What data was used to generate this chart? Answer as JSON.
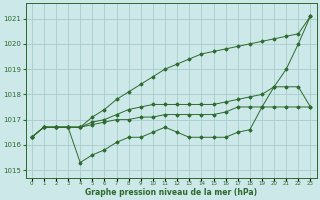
{
  "x": [
    0,
    1,
    2,
    3,
    4,
    5,
    6,
    7,
    8,
    9,
    10,
    11,
    12,
    13,
    14,
    15,
    16,
    17,
    18,
    19,
    20,
    21,
    22,
    23
  ],
  "line1": [
    1016.3,
    1016.7,
    1016.7,
    1016.7,
    1015.3,
    1015.6,
    1015.8,
    1016.1,
    1016.3,
    1016.3,
    1016.5,
    1016.7,
    1016.5,
    1016.3,
    1016.3,
    1016.3,
    1016.3,
    1016.5,
    1016.6,
    1017.5,
    1018.3,
    1019.0,
    1020.0,
    1021.1
  ],
  "line2": [
    1016.3,
    1016.7,
    1016.7,
    1016.7,
    1016.7,
    1016.9,
    1017.0,
    1017.2,
    1017.4,
    1017.5,
    1017.6,
    1017.6,
    1017.6,
    1017.6,
    1017.6,
    1017.6,
    1017.7,
    1017.8,
    1017.9,
    1018.0,
    1018.3,
    1018.3,
    1018.3,
    1017.5
  ],
  "line3": [
    1016.3,
    1016.7,
    1016.7,
    1016.7,
    1016.7,
    1017.1,
    1017.4,
    1017.8,
    1018.1,
    1018.4,
    1018.7,
    1019.0,
    1019.2,
    1019.4,
    1019.6,
    1019.7,
    1019.8,
    1019.9,
    1020.0,
    1020.1,
    1020.2,
    1020.3,
    1020.4,
    1021.1
  ],
  "line4": [
    1016.3,
    1016.7,
    1016.7,
    1016.7,
    1016.7,
    1016.8,
    1016.9,
    1017.0,
    1017.0,
    1017.1,
    1017.1,
    1017.2,
    1017.2,
    1017.2,
    1017.2,
    1017.2,
    1017.3,
    1017.5,
    1017.5,
    1017.5,
    1017.5,
    1017.5,
    1017.5,
    1017.5
  ],
  "bg_color": "#cce8e8",
  "grid_color": "#aacccc",
  "line_color": "#2d6a2d",
  "xlabel": "Graphe pression niveau de la mer (hPa)",
  "ylabel_ticks": [
    1015,
    1016,
    1017,
    1018,
    1019,
    1020,
    1021
  ],
  "xlim": [
    -0.5,
    23.5
  ],
  "ylim": [
    1014.7,
    1021.6
  ],
  "tick_labels": [
    "0",
    "1",
    "2",
    "3",
    "4",
    "5",
    "6",
    "7",
    "8",
    "9",
    "10",
    "11",
    "12",
    "13",
    "14",
    "15",
    "16",
    "17",
    "18",
    "19",
    "20",
    "21",
    "22",
    "23"
  ]
}
